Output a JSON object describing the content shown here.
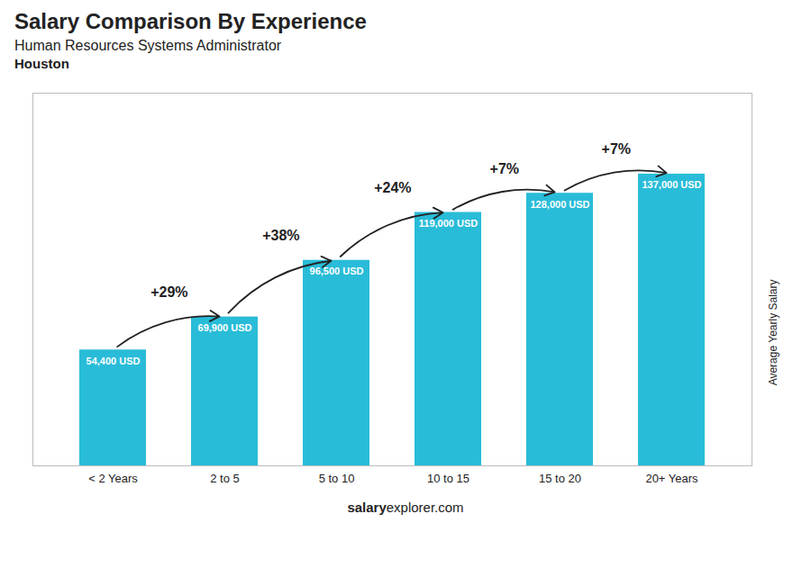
{
  "chart_data": {
    "type": "bar",
    "title": "Salary Comparison By Experience",
    "subtitle": [
      "Human Resources Systems Administrator",
      "Houston"
    ],
    "categories": [
      "< 2 Years",
      "2 to 5",
      "5 to 10",
      "10 to 15",
      "15 to 20",
      "20+ Years"
    ],
    "values": [
      54400,
      69900,
      96500,
      119000,
      128000,
      137000
    ],
    "value_labels": [
      "54,400 USD",
      "69,900 USD",
      "96,500 USD",
      "119,000 USD",
      "128,000 USD",
      "137,000 USD"
    ],
    "data_labels": true,
    "annotations": [
      "+29%",
      "+38%",
      "+24%",
      "+7%",
      "+7%"
    ],
    "ylabel": "Average Yearly Salary",
    "caption": [
      "salary",
      "explorer.com"
    ],
    "color": "#29bcd8",
    "ylim": [
      0,
      175000
    ],
    "tick_labels": "x",
    "grid": false
  }
}
